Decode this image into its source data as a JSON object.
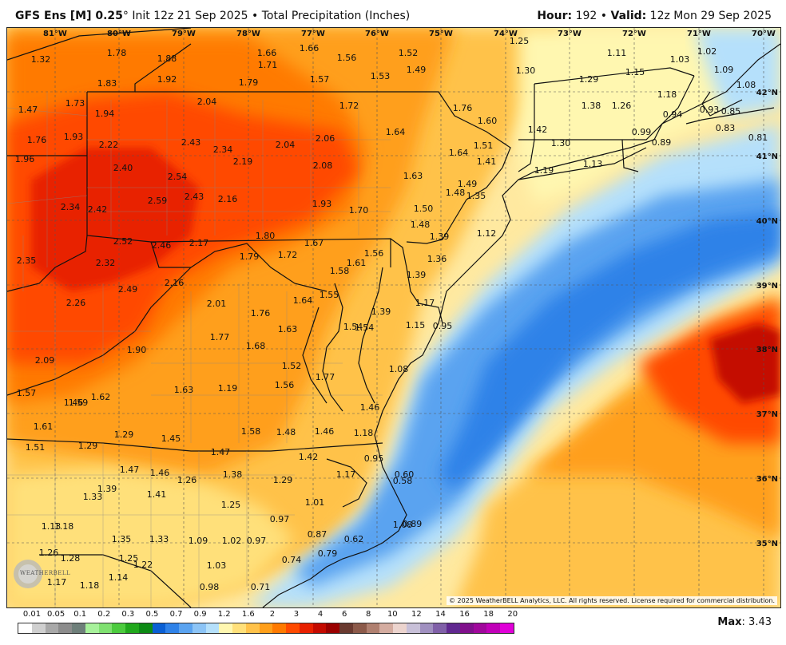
{
  "header": {
    "model": "GFS Ens [M] 0.25",
    "degree_mark": "°",
    "init": " Init 12z 21 Sep 2025",
    "bullet": " • ",
    "product": "Total Precipitation (Inches)",
    "hour_label": "Hour:",
    "hour_value": " 192 • ",
    "valid_label": "Valid:",
    "valid_value": " 12z Mon 29 Sep 2025"
  },
  "longitudes": [
    "81°W",
    "80°W",
    "79°W",
    "78°W",
    "77°W",
    "76°W",
    "75°W",
    "74°W",
    "73°W",
    "72°W",
    "71°W",
    "70°W"
  ],
  "latitudes": [
    "42°N",
    "41°N",
    "40°N",
    "39°N",
    "38°N",
    "37°N",
    "36°N",
    "35°N"
  ],
  "copyright": "© 2025 WeatherBELL Analytics, LLC. All rights reserved. License required for commercial distribution.",
  "logo_text": "WEATHERBELL",
  "colorbar": {
    "labels": [
      "0.01",
      "0.05",
      "0.1",
      "0.2",
      "0.3",
      "0.5",
      "0.7",
      "0.9",
      "1.2",
      "1.6",
      "2",
      "3",
      "4",
      "6",
      "8",
      "10",
      "12",
      "14",
      "16",
      "18",
      "20"
    ],
    "colors": [
      "#ffffff",
      "#cfcfcf",
      "#a8a8a8",
      "#8c8c8c",
      "#6e7f7a",
      "#a7f19b",
      "#7fe070",
      "#4ccb3e",
      "#20a81c",
      "#0c8a14",
      "#0a5fd4",
      "#2f82e8",
      "#5aa3f0",
      "#8cc4f6",
      "#b5e0fb",
      "#fff7b0",
      "#ffe07a",
      "#ffc24a",
      "#ff9f1a",
      "#ff7a00",
      "#ff4a00",
      "#e82000",
      "#c40a00",
      "#9a0000",
      "#6a3a30",
      "#8c5a4a",
      "#b08070",
      "#d4aca0",
      "#ecd4ce",
      "#c8c0d8",
      "#a090c0",
      "#8060a8",
      "#602890",
      "#80108c",
      "#a0089c",
      "#c000b8",
      "#e000d8"
    ],
    "max_label": "Max",
    "max_value": ": 3.43"
  },
  "stations": [
    {
      "v": "1.32"
    },
    {
      "v": "1.78"
    },
    {
      "v": "1.88"
    },
    {
      "v": "1.92"
    },
    {
      "v": "1.83"
    },
    {
      "v": "1.66"
    },
    {
      "v": "1.71"
    },
    {
      "v": "1.66"
    },
    {
      "v": "1.56"
    },
    {
      "v": "1.52"
    },
    {
      "v": "1.25"
    },
    {
      "v": "1.11"
    },
    {
      "v": "1.03"
    },
    {
      "v": "1.02"
    },
    {
      "v": "1.09"
    },
    {
      "v": "1.79"
    },
    {
      "v": "1.57"
    },
    {
      "v": "1.53"
    },
    {
      "v": "1.49"
    },
    {
      "v": "1.30"
    },
    {
      "v": "1.15"
    },
    {
      "v": "1.29"
    },
    {
      "v": "1.08"
    },
    {
      "v": "1.47"
    },
    {
      "v": "1.73"
    },
    {
      "v": "2.04"
    },
    {
      "v": "1.72"
    },
    {
      "v": "1.76"
    },
    {
      "v": "1.38"
    },
    {
      "v": "1.26"
    },
    {
      "v": "1.18"
    },
    {
      "v": "1.94"
    },
    {
      "v": "1.60"
    },
    {
      "v": "0.93"
    },
    {
      "v": "0.85"
    },
    {
      "v": "0.94"
    },
    {
      "v": "1.76"
    },
    {
      "v": "1.93"
    },
    {
      "v": "2.22"
    },
    {
      "v": "2.43"
    },
    {
      "v": "2.34"
    },
    {
      "v": "2.04"
    },
    {
      "v": "2.06"
    },
    {
      "v": "1.64"
    },
    {
      "v": "1.42"
    },
    {
      "v": "0.99"
    },
    {
      "v": "0.89"
    },
    {
      "v": "0.83"
    },
    {
      "v": "0.81"
    },
    {
      "v": "1.96"
    },
    {
      "v": "2.19"
    },
    {
      "v": "1.30"
    },
    {
      "v": "1.64"
    },
    {
      "v": "1.51"
    },
    {
      "v": "2.40"
    },
    {
      "v": "2.08"
    },
    {
      "v": "1.41"
    },
    {
      "v": "1.13"
    },
    {
      "v": "1.19"
    },
    {
      "v": "2.54"
    },
    {
      "v": "1.63"
    },
    {
      "v": "1.49"
    },
    {
      "v": "2.43"
    },
    {
      "v": "2.16"
    },
    {
      "v": "2.59"
    },
    {
      "v": "1.48"
    },
    {
      "v": "1.35"
    },
    {
      "v": "2.34"
    },
    {
      "v": "2.42"
    },
    {
      "v": "1.93"
    },
    {
      "v": "1.70"
    },
    {
      "v": "1.50"
    },
    {
      "v": "1.48"
    },
    {
      "v": "1.80"
    },
    {
      "v": "1.39"
    },
    {
      "v": "1.12"
    },
    {
      "v": "2.52"
    },
    {
      "v": "2.46"
    },
    {
      "v": "2.17"
    },
    {
      "v": "1.67"
    },
    {
      "v": "1.79"
    },
    {
      "v": "1.72"
    },
    {
      "v": "1.61"
    },
    {
      "v": "1.56"
    },
    {
      "v": "1.36"
    },
    {
      "v": "2.35"
    },
    {
      "v": "2.32"
    },
    {
      "v": "1.58"
    },
    {
      "v": "1.39"
    },
    {
      "v": "2.16"
    },
    {
      "v": "2.49"
    },
    {
      "v": "1.55"
    },
    {
      "v": "1.64"
    },
    {
      "v": "1.17"
    },
    {
      "v": "2.26"
    },
    {
      "v": "2.01"
    },
    {
      "v": "1.39"
    },
    {
      "v": "1.76"
    },
    {
      "v": "1.54"
    },
    {
      "v": "1.54"
    },
    {
      "v": "1.15"
    },
    {
      "v": "0.95"
    },
    {
      "v": "1.63"
    },
    {
      "v": "1.77"
    },
    {
      "v": "1.68"
    },
    {
      "v": "1.90"
    },
    {
      "v": "2.09"
    },
    {
      "v": "1.52"
    },
    {
      "v": "1.08"
    },
    {
      "v": "1.62"
    },
    {
      "v": "1.56"
    },
    {
      "v": "1.77"
    },
    {
      "v": "1.57"
    },
    {
      "v": "1.59"
    },
    {
      "v": "1.63"
    },
    {
      "v": "1.19"
    },
    {
      "v": "1.46"
    },
    {
      "v": "1.61"
    },
    {
      "v": "1.46"
    },
    {
      "v": "1.58"
    },
    {
      "v": "1.48"
    },
    {
      "v": "1.46"
    },
    {
      "v": "1.18"
    },
    {
      "v": "1.29"
    },
    {
      "v": "1.45"
    },
    {
      "v": "1.51"
    },
    {
      "v": "1.29"
    },
    {
      "v": "1.47"
    },
    {
      "v": "1.42"
    },
    {
      "v": "0.95"
    },
    {
      "v": "1.17"
    },
    {
      "v": "0.60"
    },
    {
      "v": "1.47"
    },
    {
      "v": "1.46"
    },
    {
      "v": "1.38"
    },
    {
      "v": "0.58"
    },
    {
      "v": "1.08"
    },
    {
      "v": "1.39"
    },
    {
      "v": "1.26"
    },
    {
      "v": "1.29"
    },
    {
      "v": "1.33"
    },
    {
      "v": "1.41"
    },
    {
      "v": "1.01"
    },
    {
      "v": "1.25"
    },
    {
      "v": "0.97"
    },
    {
      "v": "1.13"
    },
    {
      "v": "1.18"
    },
    {
      "v": "0.89"
    },
    {
      "v": "0.87"
    },
    {
      "v": "1.35"
    },
    {
      "v": "1.33"
    },
    {
      "v": "1.26"
    },
    {
      "v": "1.28"
    },
    {
      "v": "1.09"
    },
    {
      "v": "1.02"
    },
    {
      "v": "0.97"
    },
    {
      "v": "0.62"
    },
    {
      "v": "1.25"
    },
    {
      "v": "0.79"
    },
    {
      "v": "1.22"
    },
    {
      "v": "0.74"
    },
    {
      "v": "1.03"
    },
    {
      "v": "1.17"
    },
    {
      "v": "1.18"
    },
    {
      "v": "1.14"
    },
    {
      "v": "0.98"
    },
    {
      "v": "0.71"
    }
  ]
}
